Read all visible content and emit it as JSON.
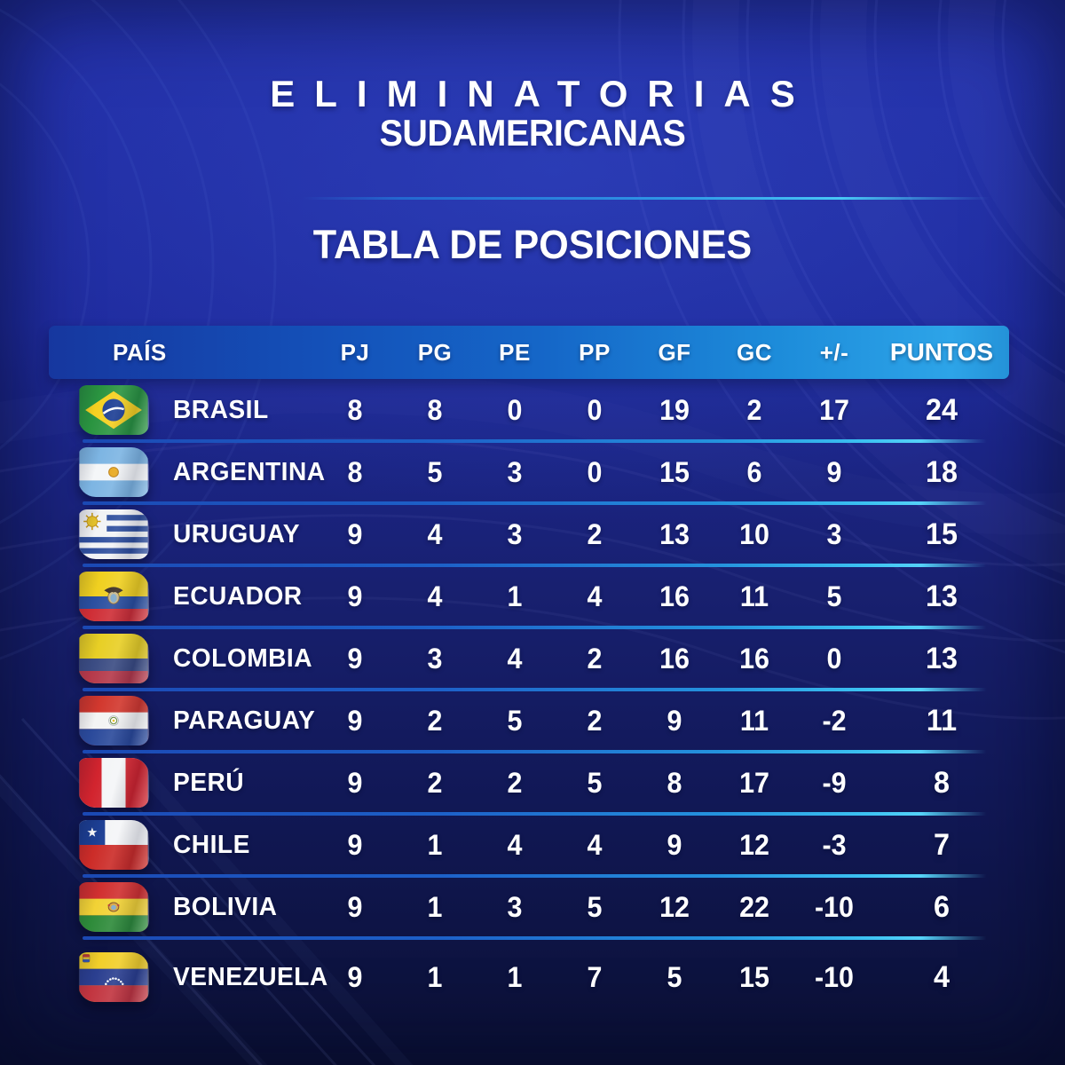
{
  "page": {
    "title": "ELIMINATORIAS",
    "subtitle": "SUDAMERICANAS",
    "section_title": "TABLA DE POSICIONES"
  },
  "chart_data": {
    "type": "table",
    "title": "ELIMINATORIAS SUDAMERICANAS",
    "subtitle": "TABLA DE POSICIONES",
    "columns": [
      "PAÍS",
      "PJ",
      "PG",
      "PE",
      "PP",
      "GF",
      "GC",
      "+/-",
      "PUNTOS"
    ],
    "rows": [
      {
        "country": "BRASIL",
        "flag": "brasil",
        "values": [
          8,
          8,
          0,
          0,
          19,
          2,
          17,
          24
        ]
      },
      {
        "country": "ARGENTINA",
        "flag": "argentina",
        "values": [
          8,
          5,
          3,
          0,
          15,
          6,
          9,
          18
        ]
      },
      {
        "country": "URUGUAY",
        "flag": "uruguay",
        "values": [
          9,
          4,
          3,
          2,
          13,
          10,
          3,
          15
        ]
      },
      {
        "country": "ECUADOR",
        "flag": "ecuador",
        "values": [
          9,
          4,
          1,
          4,
          16,
          11,
          5,
          13
        ]
      },
      {
        "country": "COLOMBIA",
        "flag": "colombia",
        "values": [
          9,
          3,
          4,
          2,
          16,
          16,
          0,
          13
        ]
      },
      {
        "country": "PARAGUAY",
        "flag": "paraguay",
        "values": [
          9,
          2,
          5,
          2,
          9,
          11,
          -2,
          11
        ]
      },
      {
        "country": "PERÚ",
        "flag": "peru",
        "values": [
          9,
          2,
          2,
          5,
          8,
          17,
          -9,
          8
        ]
      },
      {
        "country": "CHILE",
        "flag": "chile",
        "values": [
          9,
          1,
          4,
          4,
          9,
          12,
          -3,
          7
        ]
      },
      {
        "country": "BOLIVIA",
        "flag": "bolivia",
        "values": [
          9,
          1,
          3,
          5,
          12,
          22,
          -10,
          6
        ]
      },
      {
        "country": "VENEZUELA",
        "flag": "venezuela",
        "values": [
          9,
          1,
          1,
          7,
          5,
          15,
          -10,
          4
        ]
      }
    ]
  },
  "colors": {
    "background_top": "#222fa8",
    "background_bottom": "#0b1034",
    "header_band_left": "#16379f",
    "header_band_right": "#2da4e8",
    "divider_cyan": "#3cc2f2",
    "text": "#ffffff"
  }
}
